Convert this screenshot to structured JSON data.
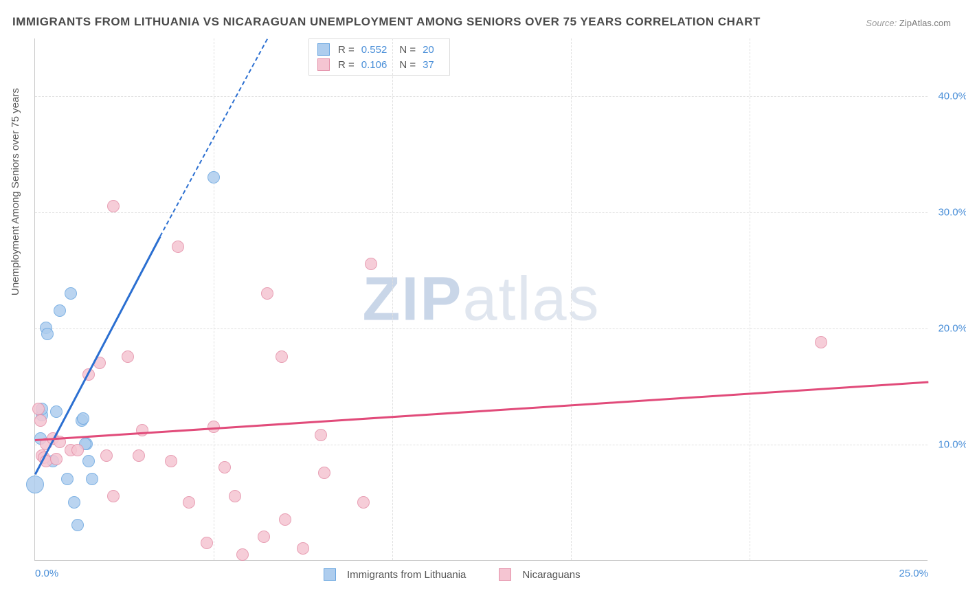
{
  "title": "IMMIGRANTS FROM LITHUANIA VS NICARAGUAN UNEMPLOYMENT AMONG SENIORS OVER 75 YEARS CORRELATION CHART",
  "source_label": "Source:",
  "source_value": "ZipAtlas.com",
  "ylabel": "Unemployment Among Seniors over 75 years",
  "watermark_bold": "ZIP",
  "watermark_light": "atlas",
  "chart": {
    "type": "scatter",
    "xlim": [
      0,
      25
    ],
    "ylim": [
      0,
      45
    ],
    "xtick_step": 5,
    "ytick_labels": [
      10.0,
      20.0,
      30.0,
      40.0
    ],
    "xtick_labels": [
      0.0,
      25.0
    ],
    "xtick_suffix": "%",
    "ytick_suffix": "%",
    "background_color": "#ffffff",
    "grid_color": "#e0e0e0",
    "axis_color": "#c8c8c8",
    "tick_font_color": "#4a8fd8",
    "tick_fontsize": 15,
    "title_fontsize": 17,
    "title_color": "#4a4a4a",
    "marker_radius": 9,
    "marker_stroke_width": 1.5,
    "marker_fill_opacity": 0.35,
    "trend_line_width": 2.5
  },
  "series": [
    {
      "name": "Immigrants from Lithuania",
      "color_stroke": "#6aa6e0",
      "color_fill": "#aecdee",
      "trend_color": "#2b6fd1",
      "R": "0.552",
      "N": "20",
      "trend": {
        "x1": 0,
        "y1": 7.5,
        "x2": 3.5,
        "y2": 28.0,
        "dash_to_x": 6.5,
        "dash_to_y": 45.0
      },
      "points": [
        {
          "x": 0.0,
          "y": 6.5,
          "r": 13
        },
        {
          "x": 0.15,
          "y": 10.5
        },
        {
          "x": 0.2,
          "y": 12.5
        },
        {
          "x": 0.2,
          "y": 13.0
        },
        {
          "x": 0.3,
          "y": 20.0
        },
        {
          "x": 0.35,
          "y": 19.5
        },
        {
          "x": 0.5,
          "y": 8.5
        },
        {
          "x": 0.7,
          "y": 21.5
        },
        {
          "x": 0.9,
          "y": 7.0
        },
        {
          "x": 1.0,
          "y": 23.0
        },
        {
          "x": 1.1,
          "y": 5.0
        },
        {
          "x": 1.2,
          "y": 3.0
        },
        {
          "x": 1.3,
          "y": 12.0
        },
        {
          "x": 1.35,
          "y": 12.2
        },
        {
          "x": 1.45,
          "y": 10.0
        },
        {
          "x": 1.5,
          "y": 8.5
        },
        {
          "x": 1.6,
          "y": 7.0
        },
        {
          "x": 5.0,
          "y": 33.0
        },
        {
          "x": 1.4,
          "y": 10.0
        },
        {
          "x": 0.6,
          "y": 12.8
        }
      ]
    },
    {
      "name": "Nicaraguans",
      "color_stroke": "#e48fa8",
      "color_fill": "#f5c5d2",
      "trend_color": "#e14b7a",
      "R": "0.106",
      "N": "37",
      "trend": {
        "x1": 0,
        "y1": 10.5,
        "x2": 25.0,
        "y2": 15.5
      },
      "points": [
        {
          "x": 0.1,
          "y": 13.0
        },
        {
          "x": 0.15,
          "y": 12.0
        },
        {
          "x": 0.2,
          "y": 9.0
        },
        {
          "x": 0.25,
          "y": 8.8
        },
        {
          "x": 0.3,
          "y": 10.0
        },
        {
          "x": 0.3,
          "y": 8.5
        },
        {
          "x": 0.5,
          "y": 10.5
        },
        {
          "x": 0.6,
          "y": 8.7
        },
        {
          "x": 0.7,
          "y": 10.2
        },
        {
          "x": 1.0,
          "y": 9.5
        },
        {
          "x": 1.2,
          "y": 9.5
        },
        {
          "x": 1.5,
          "y": 16.0
        },
        {
          "x": 1.8,
          "y": 17.0
        },
        {
          "x": 2.0,
          "y": 9.0
        },
        {
          "x": 2.2,
          "y": 30.5
        },
        {
          "x": 2.2,
          "y": 5.5
        },
        {
          "x": 2.6,
          "y": 17.5
        },
        {
          "x": 2.9,
          "y": 9.0
        },
        {
          "x": 3.0,
          "y": 11.2
        },
        {
          "x": 3.8,
          "y": 8.5
        },
        {
          "x": 4.0,
          "y": 27.0
        },
        {
          "x": 4.3,
          "y": 5.0
        },
        {
          "x": 4.8,
          "y": 1.5
        },
        {
          "x": 5.0,
          "y": 11.5
        },
        {
          "x": 5.3,
          "y": 8.0
        },
        {
          "x": 5.6,
          "y": 5.5
        },
        {
          "x": 5.8,
          "y": 0.5
        },
        {
          "x": 6.4,
          "y": 2.0
        },
        {
          "x": 6.5,
          "y": 23.0
        },
        {
          "x": 6.9,
          "y": 17.5
        },
        {
          "x": 7.0,
          "y": 3.5
        },
        {
          "x": 7.5,
          "y": 1.0
        },
        {
          "x": 8.0,
          "y": 10.8
        },
        {
          "x": 8.1,
          "y": 7.5
        },
        {
          "x": 9.2,
          "y": 5.0
        },
        {
          "x": 9.4,
          "y": 25.5
        },
        {
          "x": 22.0,
          "y": 18.8
        }
      ]
    }
  ],
  "legend_top": {
    "r_label": "R =",
    "n_label": "N ="
  },
  "legend_bottom": {
    "items": [
      "Immigrants from Lithuania",
      "Nicaraguans"
    ]
  }
}
